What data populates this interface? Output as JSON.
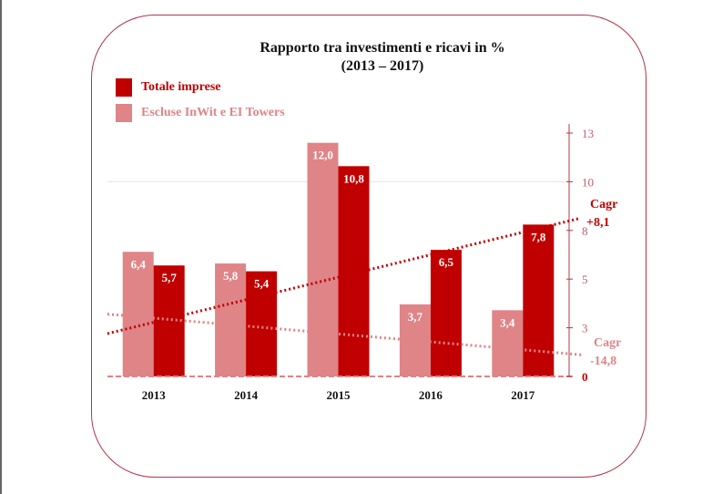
{
  "chart_data": {
    "type": "bar",
    "title": "Rapporto tra investimenti e ricavi in %",
    "subtitle": "(2013 – 2017)",
    "categories": [
      "2013",
      "2014",
      "2015",
      "2016",
      "2017"
    ],
    "series": [
      {
        "name": "Escluse InWit e EI Towers",
        "color": "#df8487",
        "values": [
          6.4,
          5.8,
          12.0,
          3.7,
          3.4
        ],
        "labels": [
          "6,4",
          "5,8",
          "12,0",
          "3,7",
          "3,4"
        ]
      },
      {
        "name": "Totale imprese",
        "color": "#c00000",
        "values": [
          5.7,
          5.4,
          10.8,
          6.5,
          7.8
        ],
        "labels": [
          "5,7",
          "5,4",
          "10,8",
          "6,5",
          "7,8"
        ]
      }
    ],
    "trendlines": [
      {
        "series": "Totale imprese",
        "start": 2.2,
        "end": 8.1,
        "color": "#c00000",
        "label1": "Cagr",
        "label2": "+8,1"
      },
      {
        "series": "Escluse InWit e EI Towers",
        "start": 3.2,
        "end": 1.1,
        "color": "#df8487",
        "label1": "Cagr",
        "label2": "-14,8"
      }
    ],
    "yaxis": {
      "position": "right",
      "ylim": [
        0,
        12.5
      ],
      "ticks": [
        0,
        2.5,
        5,
        7.5,
        10,
        12.5
      ],
      "tick_labels": [
        "0",
        "3",
        "5",
        "8",
        "10",
        "13"
      ]
    },
    "grid": true,
    "legend": "top-left"
  }
}
